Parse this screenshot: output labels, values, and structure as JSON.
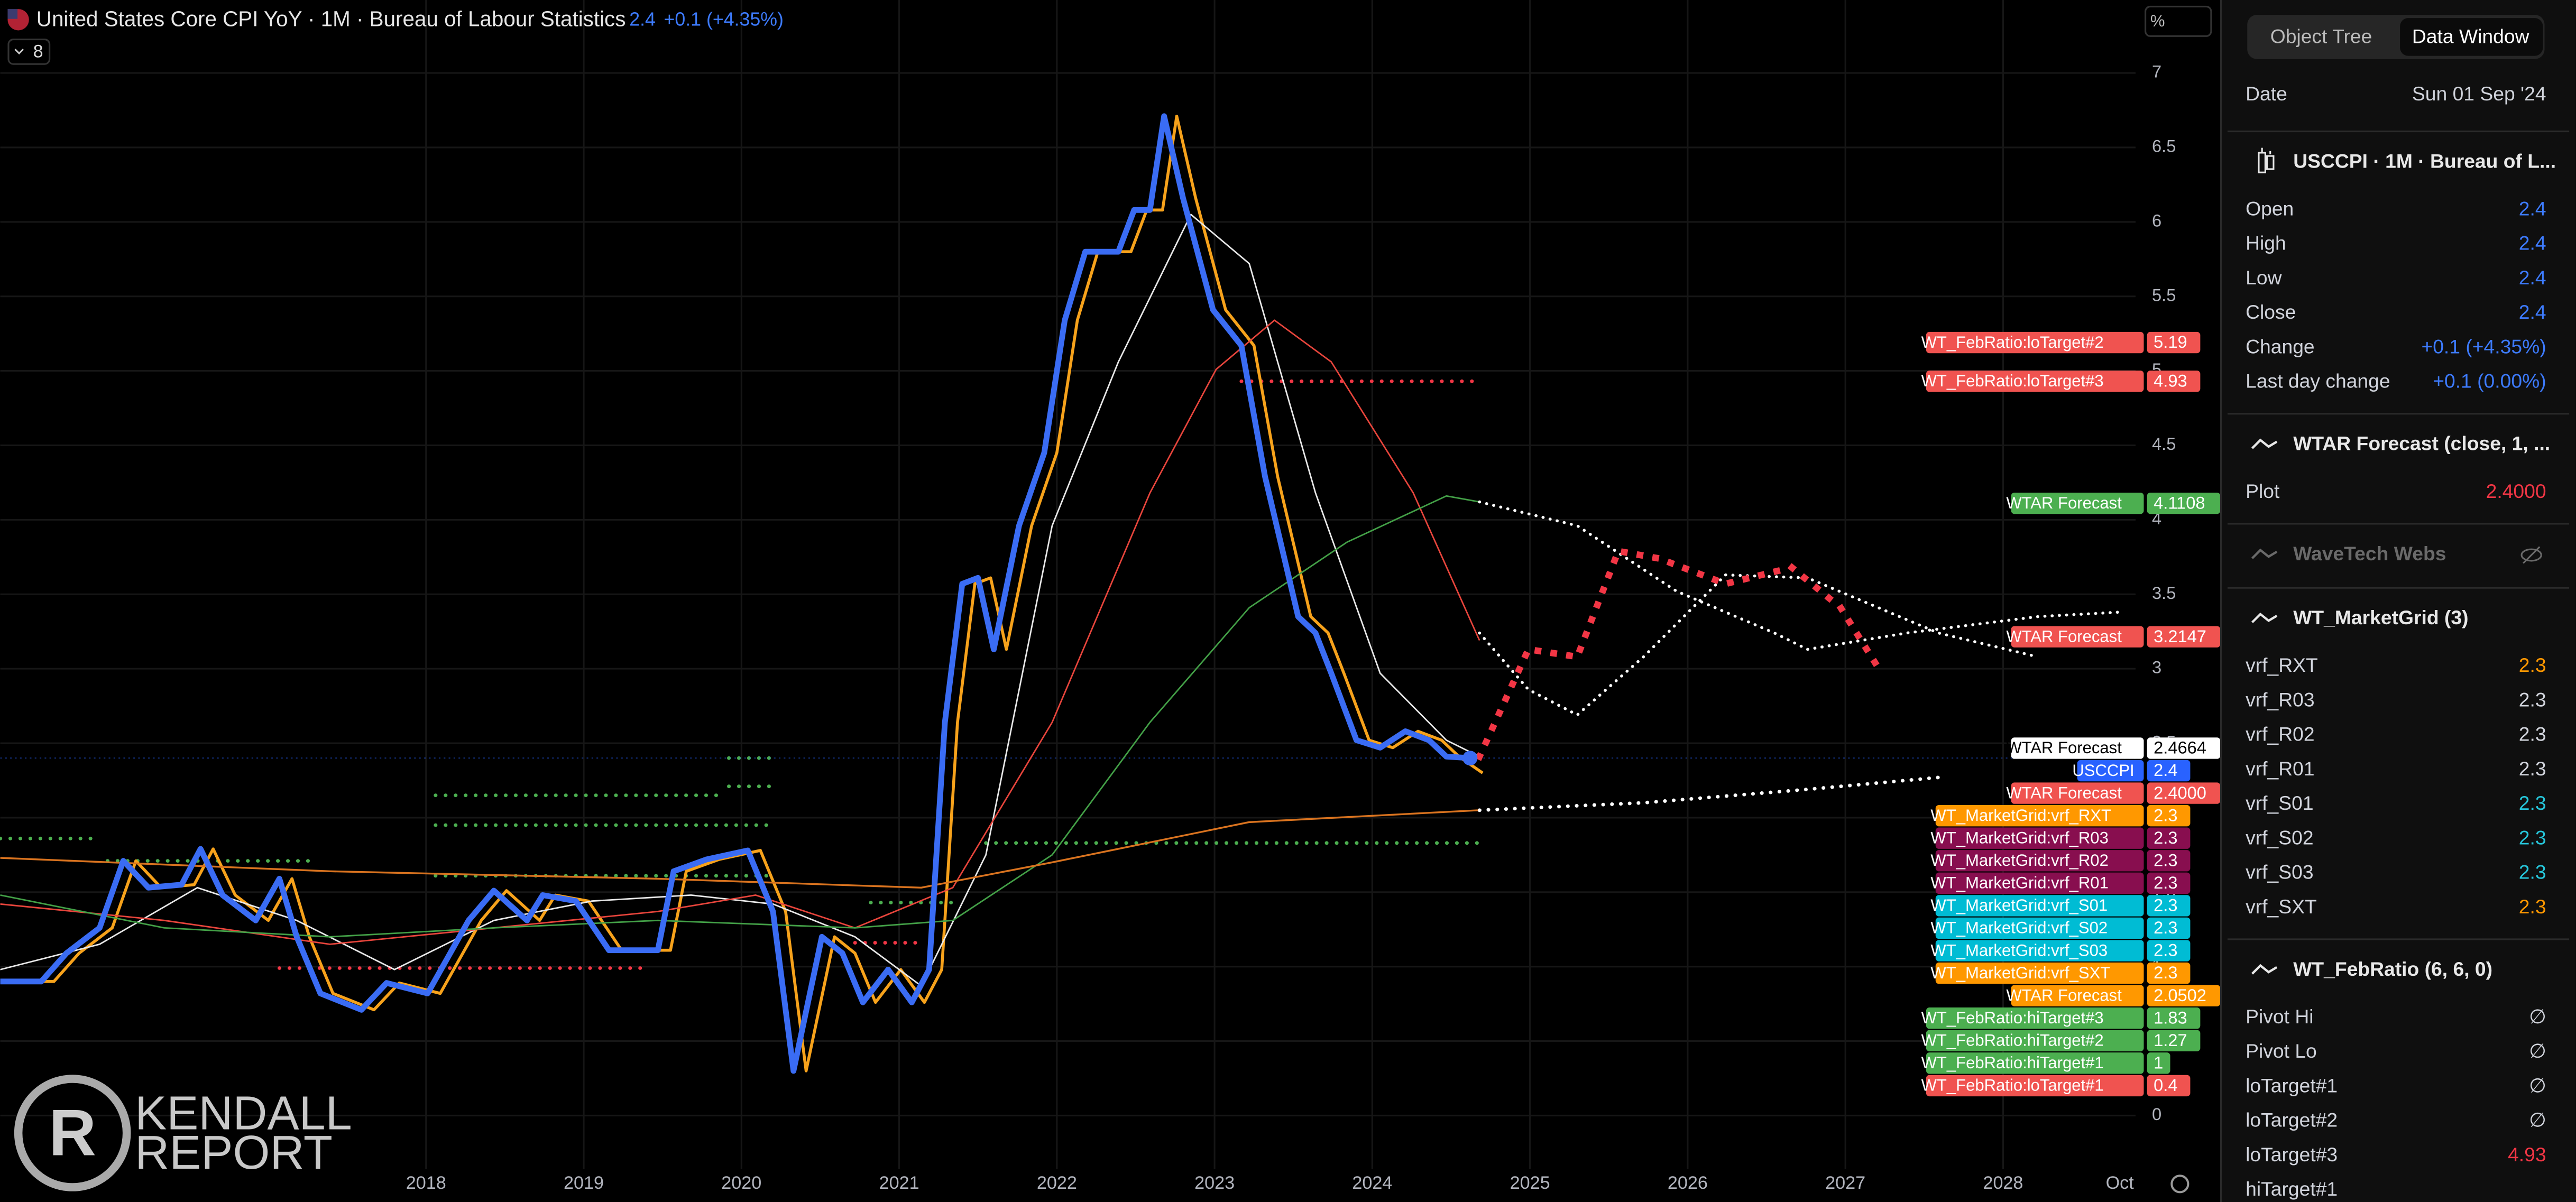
{
  "header": {
    "title": "United States Core CPI YoY · 1M · Bureau of Labour Statistics",
    "last": "2.4",
    "change": "+0.1 (+4.35%)",
    "indicator_count": "8",
    "unit": "%"
  },
  "logo": {
    "line1": "KENDALL",
    "line2": "REPORT"
  },
  "chart_data": {
    "type": "line",
    "xlim": [
      2015.3,
      2028.84
    ],
    "ylim": [
      -0.36,
      7.49
    ],
    "xticks": [
      2018,
      2019,
      2020,
      2021,
      2022,
      2023,
      2024,
      2025,
      2026,
      2027,
      2028,
      {
        "value": 2028.74,
        "label": "Oct"
      }
    ],
    "yticks": [
      0,
      0.5,
      1,
      1.5,
      2,
      2.5,
      3,
      3.5,
      4,
      4.5,
      5,
      5.5,
      6,
      6.5,
      7
    ],
    "grid": true,
    "series": [
      {
        "name": "USCCPI",
        "color": "#3a6cf4",
        "width": 3.5,
        "style": "solid",
        "end_marker": true,
        "x": [
          2015.3,
          2015.56,
          2015.72,
          2015.93,
          2016.08,
          2016.24,
          2016.45,
          2016.57,
          2016.71,
          2016.92,
          2017.07,
          2017.18,
          2017.33,
          2017.59,
          2017.75,
          2018.01,
          2018.27,
          2018.43,
          2018.64,
          2018.74,
          2018.95,
          2019.16,
          2019.47,
          2019.57,
          2019.78,
          2020.04,
          2020.2,
          2020.33,
          2020.51,
          2020.64,
          2020.77,
          2020.93,
          2021.08,
          2021.19,
          2021.29,
          2021.4,
          2021.5,
          2021.6,
          2021.76,
          2021.92,
          2022.05,
          2022.18,
          2022.39,
          2022.49,
          2022.59,
          2022.68,
          2022.8,
          2022.99,
          2023.17,
          2023.32,
          2023.53,
          2023.64,
          2023.74,
          2023.9,
          2024.05,
          2024.21,
          2024.36,
          2024.47,
          2024.62
        ],
        "values": [
          0.9,
          0.9,
          1.09,
          1.26,
          1.71,
          1.53,
          1.55,
          1.79,
          1.48,
          1.31,
          1.59,
          1.2,
          0.82,
          0.71,
          0.89,
          0.82,
          1.31,
          1.51,
          1.31,
          1.48,
          1.44,
          1.11,
          1.11,
          1.64,
          1.72,
          1.78,
          1.37,
          0.3,
          1.2,
          1.09,
          0.76,
          0.98,
          0.76,
          0.98,
          2.64,
          3.57,
          3.61,
          3.13,
          3.96,
          4.45,
          5.34,
          5.8,
          5.8,
          6.08,
          6.08,
          6.71,
          6.16,
          5.41,
          5.17,
          4.29,
          3.35,
          3.24,
          2.97,
          2.52,
          2.47,
          2.58,
          2.52,
          2.41,
          2.4
        ]
      },
      {
        "color": "#f7a21b",
        "width": 1.8,
        "style": "solid",
        "x": [
          2015.38,
          2015.64,
          2015.8,
          2016.01,
          2016.16,
          2016.32,
          2016.53,
          2016.65,
          2016.79,
          2017.0,
          2017.15,
          2017.26,
          2017.41,
          2017.67,
          2017.83,
          2018.09,
          2018.35,
          2018.51,
          2018.72,
          2018.82,
          2019.03,
          2019.24,
          2019.55,
          2019.65,
          2019.86,
          2020.12,
          2020.28,
          2020.41,
          2020.59,
          2020.72,
          2020.85,
          2021.01,
          2021.16,
          2021.27,
          2021.37,
          2021.48,
          2021.58,
          2021.68,
          2021.84,
          2022.0,
          2022.13,
          2022.26,
          2022.47,
          2022.57,
          2022.67,
          2022.76,
          2022.88,
          2023.07,
          2023.25,
          2023.4,
          2023.61,
          2023.72,
          2023.82,
          2023.98,
          2024.13,
          2024.29,
          2024.44,
          2024.55,
          2024.7
        ],
        "values": [
          0.9,
          0.9,
          1.09,
          1.26,
          1.71,
          1.53,
          1.55,
          1.79,
          1.48,
          1.31,
          1.59,
          1.2,
          0.82,
          0.71,
          0.89,
          0.82,
          1.31,
          1.51,
          1.31,
          1.48,
          1.44,
          1.11,
          1.11,
          1.64,
          1.72,
          1.78,
          1.37,
          0.3,
          1.2,
          1.09,
          0.76,
          0.98,
          0.76,
          0.98,
          2.64,
          3.57,
          3.61,
          3.13,
          3.96,
          4.45,
          5.34,
          5.8,
          5.8,
          6.08,
          6.08,
          6.71,
          6.16,
          5.41,
          5.17,
          4.29,
          3.35,
          3.24,
          2.97,
          2.52,
          2.47,
          2.58,
          2.52,
          2.41,
          2.3
        ]
      },
      {
        "color": "#e8e8e8",
        "width": 0.9,
        "style": "solid",
        "x": [
          2015.3,
          2015.93,
          2016.55,
          2017.18,
          2017.8,
          2018.43,
          2019.05,
          2019.68,
          2020.2,
          2020.72,
          2021.14,
          2021.55,
          2021.97,
          2022.39,
          2022.85,
          2023.22,
          2023.64,
          2024.05,
          2024.47,
          2024.68
        ],
        "values": [
          0.98,
          1.15,
          1.53,
          1.31,
          0.98,
          1.31,
          1.44,
          1.48,
          1.42,
          1.2,
          0.87,
          1.75,
          3.96,
          5.06,
          6.05,
          5.72,
          4.18,
          2.97,
          2.52,
          2.41
        ]
      },
      {
        "color": "#e8453c",
        "width": 0.9,
        "style": "solid",
        "x": [
          2015.3,
          2016.34,
          2017.39,
          2018.43,
          2019.47,
          2020.09,
          2020.72,
          2021.34,
          2021.97,
          2022.59,
          2023.01,
          2023.38,
          2023.74,
          2024.26,
          2024.68
        ],
        "values": [
          1.42,
          1.31,
          1.15,
          1.26,
          1.37,
          1.48,
          1.26,
          1.53,
          2.64,
          4.18,
          5.01,
          5.34,
          5.06,
          4.18,
          3.19
        ]
      },
      {
        "color": "#43a047",
        "width": 0.9,
        "style": "solid",
        "x": [
          2015.3,
          2016.34,
          2017.39,
          2018.43,
          2019.47,
          2020.72,
          2021.34,
          2021.97,
          2022.59,
          2023.22,
          2023.84,
          2024.47,
          2024.68
        ],
        "values": [
          1.48,
          1.26,
          1.2,
          1.26,
          1.31,
          1.26,
          1.31,
          1.75,
          2.64,
          3.41,
          3.85,
          4.16,
          4.12
        ]
      },
      {
        "color": "#d9731f",
        "width": 1.1,
        "style": "solid",
        "x": [
          2015.3,
          2017.39,
          2019.47,
          2021.14,
          2021.97,
          2023.22,
          2024.68
        ],
        "values": [
          1.73,
          1.64,
          1.59,
          1.53,
          1.7,
          1.97,
          2.05
        ]
      },
      {
        "color": "#ffffff",
        "width": 1.8,
        "style": "dotted",
        "x": [
          2024.68,
          2025.3,
          2025.93,
          2026.55,
          2026.76,
          2027.39,
          2028.22,
          2028.74
        ],
        "values": [
          4.12,
          3.96,
          3.52,
          3.24,
          3.13,
          3.24,
          3.35,
          3.38
        ]
      },
      {
        "color": "#ffffff",
        "width": 1.8,
        "style": "dotted",
        "x": [
          2024.68,
          2024.99,
          2025.3,
          2025.72,
          2026.24,
          2026.76,
          2027.59,
          2028.22
        ],
        "values": [
          3.24,
          2.86,
          2.69,
          3.08,
          3.63,
          3.61,
          3.24,
          3.08
        ]
      },
      {
        "color": "#f23645",
        "width": 4,
        "style": "dotted",
        "x": [
          2024.68,
          2024.99,
          2025.3,
          2025.56,
          2025.82,
          2026.24,
          2026.66,
          2026.97,
          2027.23
        ],
        "values": [
          2.41,
          3.13,
          3.08,
          3.79,
          3.74,
          3.57,
          3.68,
          3.41,
          2.97
        ]
      },
      {
        "color": "#ffffff",
        "width": 2.2,
        "style": "dotted",
        "x": [
          2024.68,
          2025.72,
          2026.76,
          2027.59
        ],
        "values": [
          2.05,
          2.1,
          2.19,
          2.27
        ]
      }
    ],
    "levels": [
      {
        "color": "#f23645",
        "value": 4.93,
        "x": [
          2023.17,
          2024.68
        ]
      },
      {
        "color": "#4caf50",
        "value": 1.83,
        "x": [
          2021.55,
          2024.68
        ]
      },
      {
        "color": "#4caf50",
        "value": 2.4,
        "x": [
          2019.92,
          2020.18
        ]
      },
      {
        "color": "#4caf50",
        "value": 2.21,
        "x": [
          2019.92,
          2020.18
        ]
      },
      {
        "color": "#4caf50",
        "value": 2.15,
        "x": [
          2018.06,
          2019.89
        ]
      },
      {
        "color": "#4caf50",
        "value": 1.95,
        "x": [
          2018.06,
          2020.2
        ]
      },
      {
        "color": "#4caf50",
        "value": 1.86,
        "x": [
          2015.3,
          2015.93
        ]
      },
      {
        "color": "#4caf50",
        "value": 1.71,
        "x": [
          2015.98,
          2017.28
        ]
      },
      {
        "color": "#4caf50",
        "value": 1.61,
        "x": [
          2018.06,
          2020.2
        ]
      },
      {
        "color": "#4caf50",
        "value": 1.43,
        "x": [
          2020.82,
          2021.34
        ]
      },
      {
        "color": "#f23645",
        "value": 1.16,
        "x": [
          2020.72,
          2021.14
        ]
      },
      {
        "color": "#f23645",
        "value": 0.99,
        "x": [
          2017.07,
          2019.36
        ]
      }
    ],
    "price_tags": {
      "labels": [
        "WT_FebRatio:loTarget#2",
        "WT_FebRatio:loTarget#3",
        "WTAR Forecast",
        "WTAR Forecast",
        "WTAR Forecast",
        "USCCPI",
        "WTAR Forecast",
        "WT_MarketGrid:vrf_RXT",
        "WT_MarketGrid:vrf_R03",
        "WT_MarketGrid:vrf_R02",
        "WT_MarketGrid:vrf_R01",
        "WT_MarketGrid:vrf_S01",
        "WT_MarketGrid:vrf_S02",
        "WT_MarketGrid:vrf_S03",
        "WT_MarketGrid:vrf_SXT",
        "WTAR Forecast",
        "WT_FebRatio:hiTarget#3",
        "WT_FebRatio:hiTarget#2",
        "WT_FebRatio:hiTarget#1",
        "WT_FebRatio:loTarget#1"
      ],
      "values": [
        5.19,
        4.93,
        4.1108,
        3.2147,
        2.4664,
        2.4,
        2.4,
        2.3,
        2.3,
        2.3,
        2.3,
        2.3,
        2.3,
        2.3,
        2.3,
        2.0502,
        1.83,
        1.27,
        1,
        0.4
      ],
      "value_labels": [
        "5.19",
        "4.93",
        "4.1108",
        "3.2147",
        "2.4664",
        "2.4",
        "2.4000",
        "2.3",
        "2.3",
        "2.3",
        "2.3",
        "2.3",
        "2.3",
        "2.3",
        "2.3",
        "2.0502",
        "1.83",
        "1.27",
        "1",
        "0.4"
      ],
      "colors": [
        "#f05350",
        "#f05350",
        "#4caf50",
        "#f05350",
        "#ffffff",
        "#2962ff",
        "#f05350",
        "#ff9800",
        "#880e4f",
        "#880e4f",
        "#880e4f",
        "#00bcd4",
        "#00bcd4",
        "#00bcd4",
        "#ff9800",
        "#ff9800",
        "#4caf50",
        "#4caf50",
        "#4caf50",
        "#f05350"
      ]
    }
  },
  "data_window": {
    "tabs": [
      "Object Tree",
      "Data Window"
    ],
    "active_tab": 1,
    "date_label": "Date",
    "date": "Sun 01 Sep '24",
    "sections": [
      {
        "title": "USCCPI · 1M · Bureau of L...",
        "rows": [
          {
            "label": "Open",
            "value": "2.4",
            "color": "#3d7bff"
          },
          {
            "label": "High",
            "value": "2.4",
            "color": "#3d7bff"
          },
          {
            "label": "Low",
            "value": "2.4",
            "color": "#3d7bff"
          },
          {
            "label": "Close",
            "value": "2.4",
            "color": "#3d7bff"
          },
          {
            "label": "Change",
            "value": "+0.1 (+4.35%)",
            "color": "#3d7bff"
          },
          {
            "label": "Last day change",
            "value": "+0.1 (0.00%)",
            "color": "#3d7bff"
          }
        ]
      },
      {
        "title": "WTAR Forecast (close, 1, ...",
        "rows": [
          {
            "label": "Plot",
            "value": "2.4000",
            "color": "#f23645"
          }
        ]
      },
      {
        "title": "WaveTech Webs",
        "muted": true,
        "rows": []
      },
      {
        "title": "WT_MarketGrid (3)",
        "rows": [
          {
            "label": "vrf_RXT",
            "value": "2.3",
            "color": "#ff9800"
          },
          {
            "label": "vrf_R03",
            "value": "2.3",
            "color": "#d1d4dc"
          },
          {
            "label": "vrf_R02",
            "value": "2.3",
            "color": "#d1d4dc"
          },
          {
            "label": "vrf_R01",
            "value": "2.3",
            "color": "#d1d4dc"
          },
          {
            "label": "vrf_S01",
            "value": "2.3",
            "color": "#26c6da"
          },
          {
            "label": "vrf_S02",
            "value": "2.3",
            "color": "#26c6da"
          },
          {
            "label": "vrf_S03",
            "value": "2.3",
            "color": "#26c6da"
          },
          {
            "label": "vrf_SXT",
            "value": "2.3",
            "color": "#ff9800"
          }
        ]
      },
      {
        "title": "WT_FebRatio (6, 6, 0)",
        "rows": [
          {
            "label": "Pivot Hi",
            "value": "∅",
            "color": "#d1d4dc"
          },
          {
            "label": "Pivot Lo",
            "value": "∅",
            "color": "#d1d4dc"
          },
          {
            "label": "loTarget#1",
            "value": "∅",
            "color": "#d1d4dc"
          },
          {
            "label": "loTarget#2",
            "value": "∅",
            "color": "#d1d4dc"
          },
          {
            "label": "loTarget#3",
            "value": "4.93",
            "color": "#f23645"
          },
          {
            "label": "hiTarget#1"
          }
        ]
      }
    ]
  }
}
